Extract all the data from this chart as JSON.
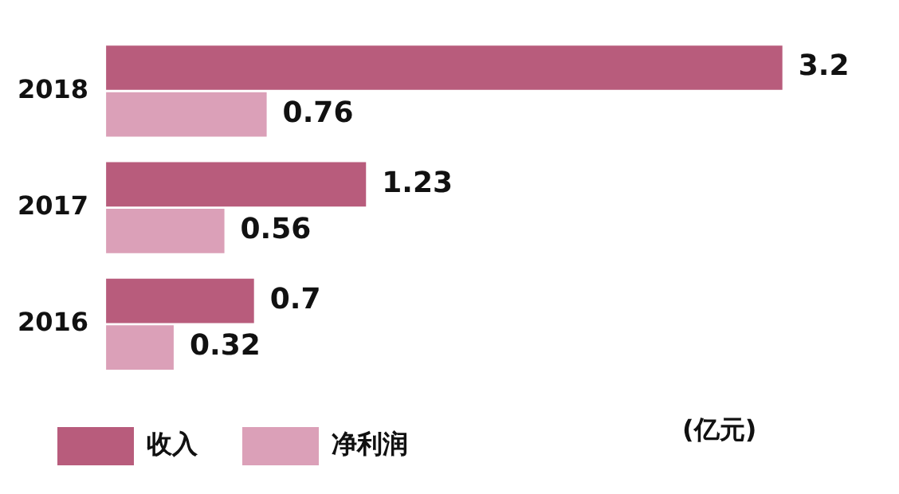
{
  "chart_data": {
    "type": "bar",
    "orientation": "horizontal",
    "categories": [
      "2018",
      "2017",
      "2016"
    ],
    "series": [
      {
        "name": "收入",
        "color": "#b85c7c",
        "values": [
          3.2,
          1.23,
          0.7
        ]
      },
      {
        "name": "净利润",
        "color": "#dba0b8",
        "values": [
          0.76,
          0.56,
          0.32
        ]
      }
    ],
    "data_labels": true,
    "tick_labels": "y",
    "legend": "bottom",
    "annotations": [
      "(亿元)"
    ]
  }
}
